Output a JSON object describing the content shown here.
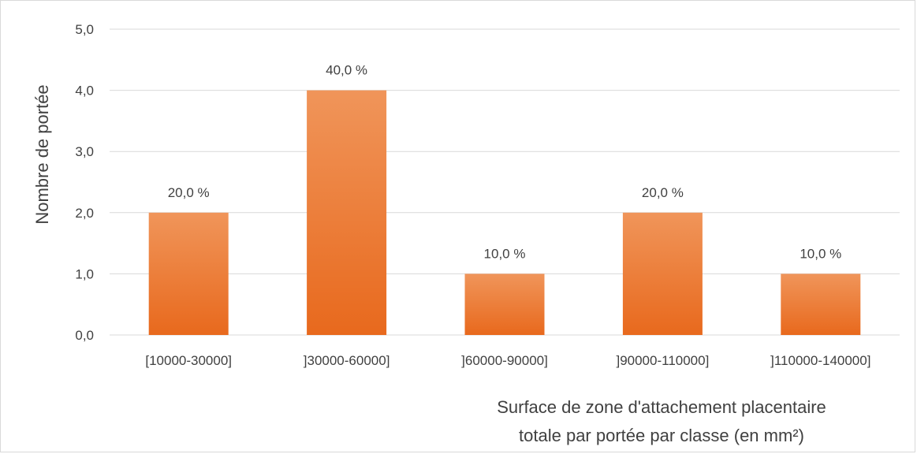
{
  "chart_data": {
    "type": "bar",
    "categories": [
      "[10000-30000]",
      "]30000-60000]",
      "]60000-90000]",
      "]90000-110000]",
      "]110000-140000]"
    ],
    "values": [
      2,
      4,
      1,
      2,
      1
    ],
    "data_labels": [
      "20,0 %",
      "40,0 %",
      "10,0 %",
      "20,0 %",
      "10,0 %"
    ],
    "title": "",
    "ylabel": "Nombre de portée",
    "xlabel_lines": [
      "Surface de zone d'attachement placentaire",
      "totale par portée par classe (en mm²)"
    ],
    "ylim": [
      0,
      5
    ],
    "yticks": [
      0,
      1,
      2,
      3,
      4,
      5
    ],
    "ytick_labels": [
      "0,0",
      "1,0",
      "2,0",
      "3,0",
      "4,0",
      "5,0"
    ],
    "grid": true,
    "legend": "none",
    "bar_color_top": "#f0955a",
    "bar_color_bottom": "#e8691d",
    "grid_color": "#d9d9d9",
    "text_color": "#404040"
  }
}
